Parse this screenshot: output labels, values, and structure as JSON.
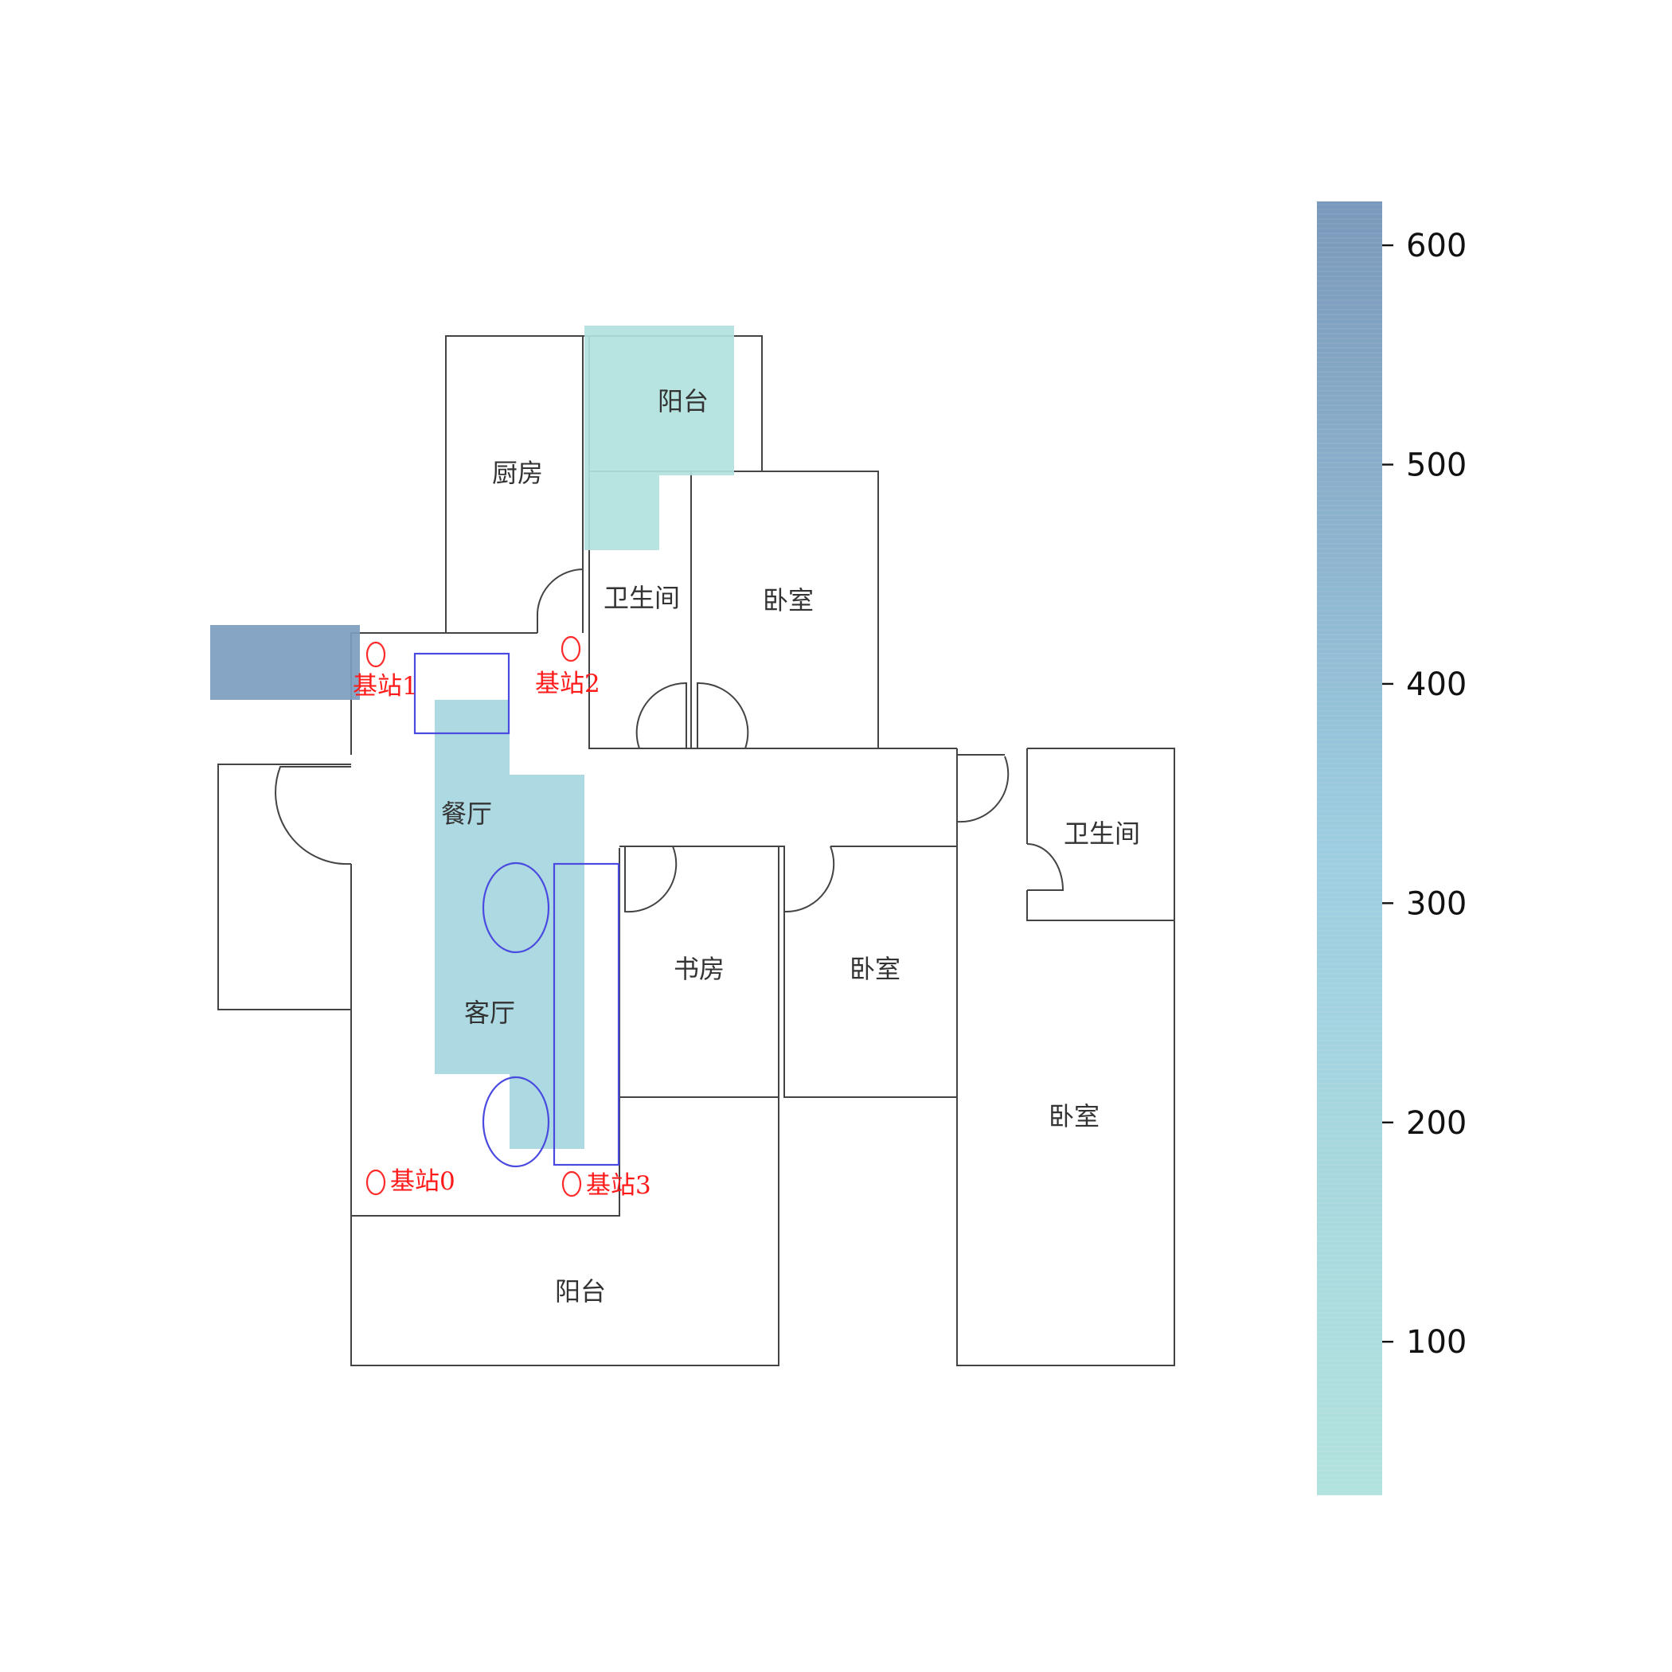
{
  "chart_data": {
    "type": "heatmap",
    "title": "",
    "background": "floor plan",
    "colorbar": {
      "range": [
        30,
        620
      ],
      "ticks": [
        100,
        200,
        300,
        400,
        500,
        600
      ],
      "tick_labels": [
        "100",
        "200",
        "300",
        "400",
        "500",
        "600"
      ],
      "color_low": "#b2e2dd",
      "color_mid": "#9dcde0",
      "color_high": "#7a98bb"
    },
    "cells": [
      {
        "col": 0,
        "row": 0,
        "value": 600
      },
      {
        "col": 1,
        "row": 0,
        "value": 600
      },
      {
        "col": 5,
        "row": -4,
        "value": 40
      },
      {
        "col": 6,
        "row": -4,
        "value": 40
      },
      {
        "col": 5,
        "row": -3,
        "value": 40
      },
      {
        "col": 6,
        "row": -3,
        "value": 40
      },
      {
        "col": 5,
        "row": -2,
        "value": 40
      },
      {
        "col": 3,
        "row": 1,
        "value": 200
      },
      {
        "col": 3,
        "row": 2,
        "value": 200
      },
      {
        "col": 4,
        "row": 2,
        "value": 200
      },
      {
        "col": 3,
        "row": 3,
        "value": 200
      },
      {
        "col": 4,
        "row": 3,
        "value": 200
      },
      {
        "col": 3,
        "row": 4,
        "value": 200
      },
      {
        "col": 4,
        "row": 4,
        "value": 200
      },
      {
        "col": 4,
        "row": 5,
        "value": 200
      },
      {
        "col": 3,
        "row": 5,
        "value": 200
      },
      {
        "col": 4,
        "row": 6,
        "value": 200
      }
    ],
    "rooms": [
      "厨房",
      "阳台",
      "卫生间",
      "卧室",
      "餐厅",
      "客厅",
      "书房",
      "卧室",
      "卫生间",
      "卧室",
      "阳台"
    ],
    "stations": [
      "基站0",
      "基站1",
      "基站2",
      "基站3"
    ]
  }
}
